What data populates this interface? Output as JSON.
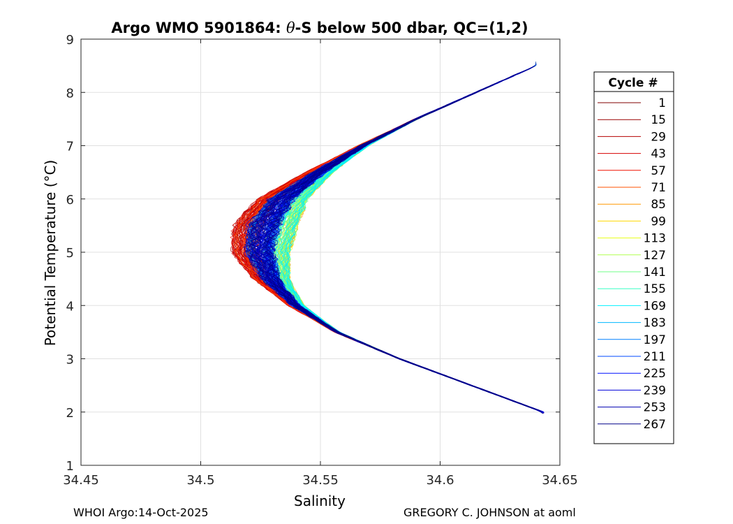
{
  "figure": {
    "footer_left": "WHOI Argo:14-Oct-2025",
    "footer_right": "GREGORY C. JOHNSON at aoml"
  },
  "chart_data": {
    "type": "line",
    "title_prefix": "Argo WMO 5901864: ",
    "title_theta": "θ",
    "title_suffix": "-S below 500 dbar,  QC=(1,2)",
    "xlabel": "Salinity",
    "ylabel": "Potential Temperature (°C)",
    "xlim": [
      34.45,
      34.65
    ],
    "ylim": [
      1,
      9
    ],
    "x_ticks": [
      34.45,
      34.5,
      34.55,
      34.6,
      34.65
    ],
    "x_tick_labels": [
      "34.45",
      "34.5",
      "34.55",
      "34.6",
      "34.65"
    ],
    "y_ticks": [
      1,
      2,
      3,
      4,
      5,
      6,
      7,
      8,
      9
    ],
    "y_tick_labels": [
      "1",
      "2",
      "3",
      "4",
      "5",
      "6",
      "7",
      "8",
      "9"
    ],
    "grid": true,
    "legend_title": "Cycle #",
    "legend_position": "outside-right",
    "colormap": "jet",
    "reference_profile": {
      "theta": [
        2.0,
        2.5,
        3.0,
        3.5,
        4.0,
        4.5,
        5.0,
        5.5,
        6.0,
        6.5,
        7.0,
        7.5,
        8.0,
        8.5
      ],
      "salinity": [
        34.643,
        34.613,
        34.583,
        34.557,
        34.54,
        34.53,
        34.526,
        34.528,
        34.535,
        34.55,
        34.568,
        34.59,
        34.615,
        34.64
      ]
    },
    "series": [
      {
        "name": "1",
        "color": "#800000"
      },
      {
        "name": "15",
        "color": "#9a0000"
      },
      {
        "name": "29",
        "color": "#b40000"
      },
      {
        "name": "43",
        "color": "#d60000"
      },
      {
        "name": "57",
        "color": "#f01000"
      },
      {
        "name": "71",
        "color": "#ff5000"
      },
      {
        "name": "85",
        "color": "#ff9800"
      },
      {
        "name": "99",
        "color": "#ffd800"
      },
      {
        "name": "113",
        "color": "#e8ff18"
      },
      {
        "name": "127",
        "color": "#b0ff50"
      },
      {
        "name": "141",
        "color": "#70ff8a"
      },
      {
        "name": "155",
        "color": "#38ffc6"
      },
      {
        "name": "169",
        "color": "#00f0ff"
      },
      {
        "name": "183",
        "color": "#00b8ff"
      },
      {
        "name": "197",
        "color": "#0080ff"
      },
      {
        "name": "211",
        "color": "#0048ff"
      },
      {
        "name": "225",
        "color": "#0010ff"
      },
      {
        "name": "239",
        "color": "#0000d8"
      },
      {
        "name": "253",
        "color": "#0000b0"
      },
      {
        "name": "267",
        "color": "#000088"
      }
    ]
  }
}
